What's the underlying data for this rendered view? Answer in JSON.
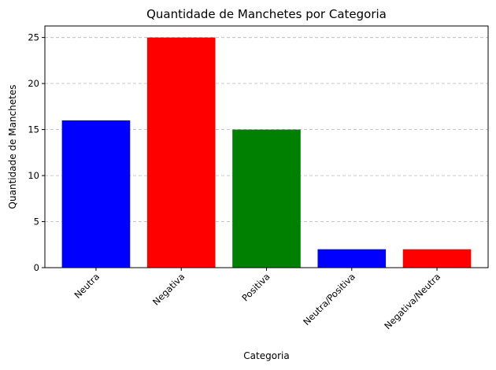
{
  "chart_data": {
    "type": "bar",
    "title": "Quantidade de Manchetes por Categoria",
    "xlabel": "Categoria",
    "ylabel": "Quantidade de Manchetes",
    "categories": [
      "Neutra",
      "Negativa",
      "Positiva",
      "Neutra/Positiva",
      "Negativa/Neutra"
    ],
    "values": [
      16,
      25,
      15,
      2,
      2
    ],
    "bar_colors": [
      "#0000ff",
      "#ff0000",
      "#008000",
      "#0000ff",
      "#ff0000"
    ],
    "ylim": [
      0,
      26.25
    ],
    "yticks": [
      0,
      5,
      10,
      15,
      20,
      25
    ],
    "grid": "y-axis dashed",
    "x_tick_rotation_deg": 45
  }
}
